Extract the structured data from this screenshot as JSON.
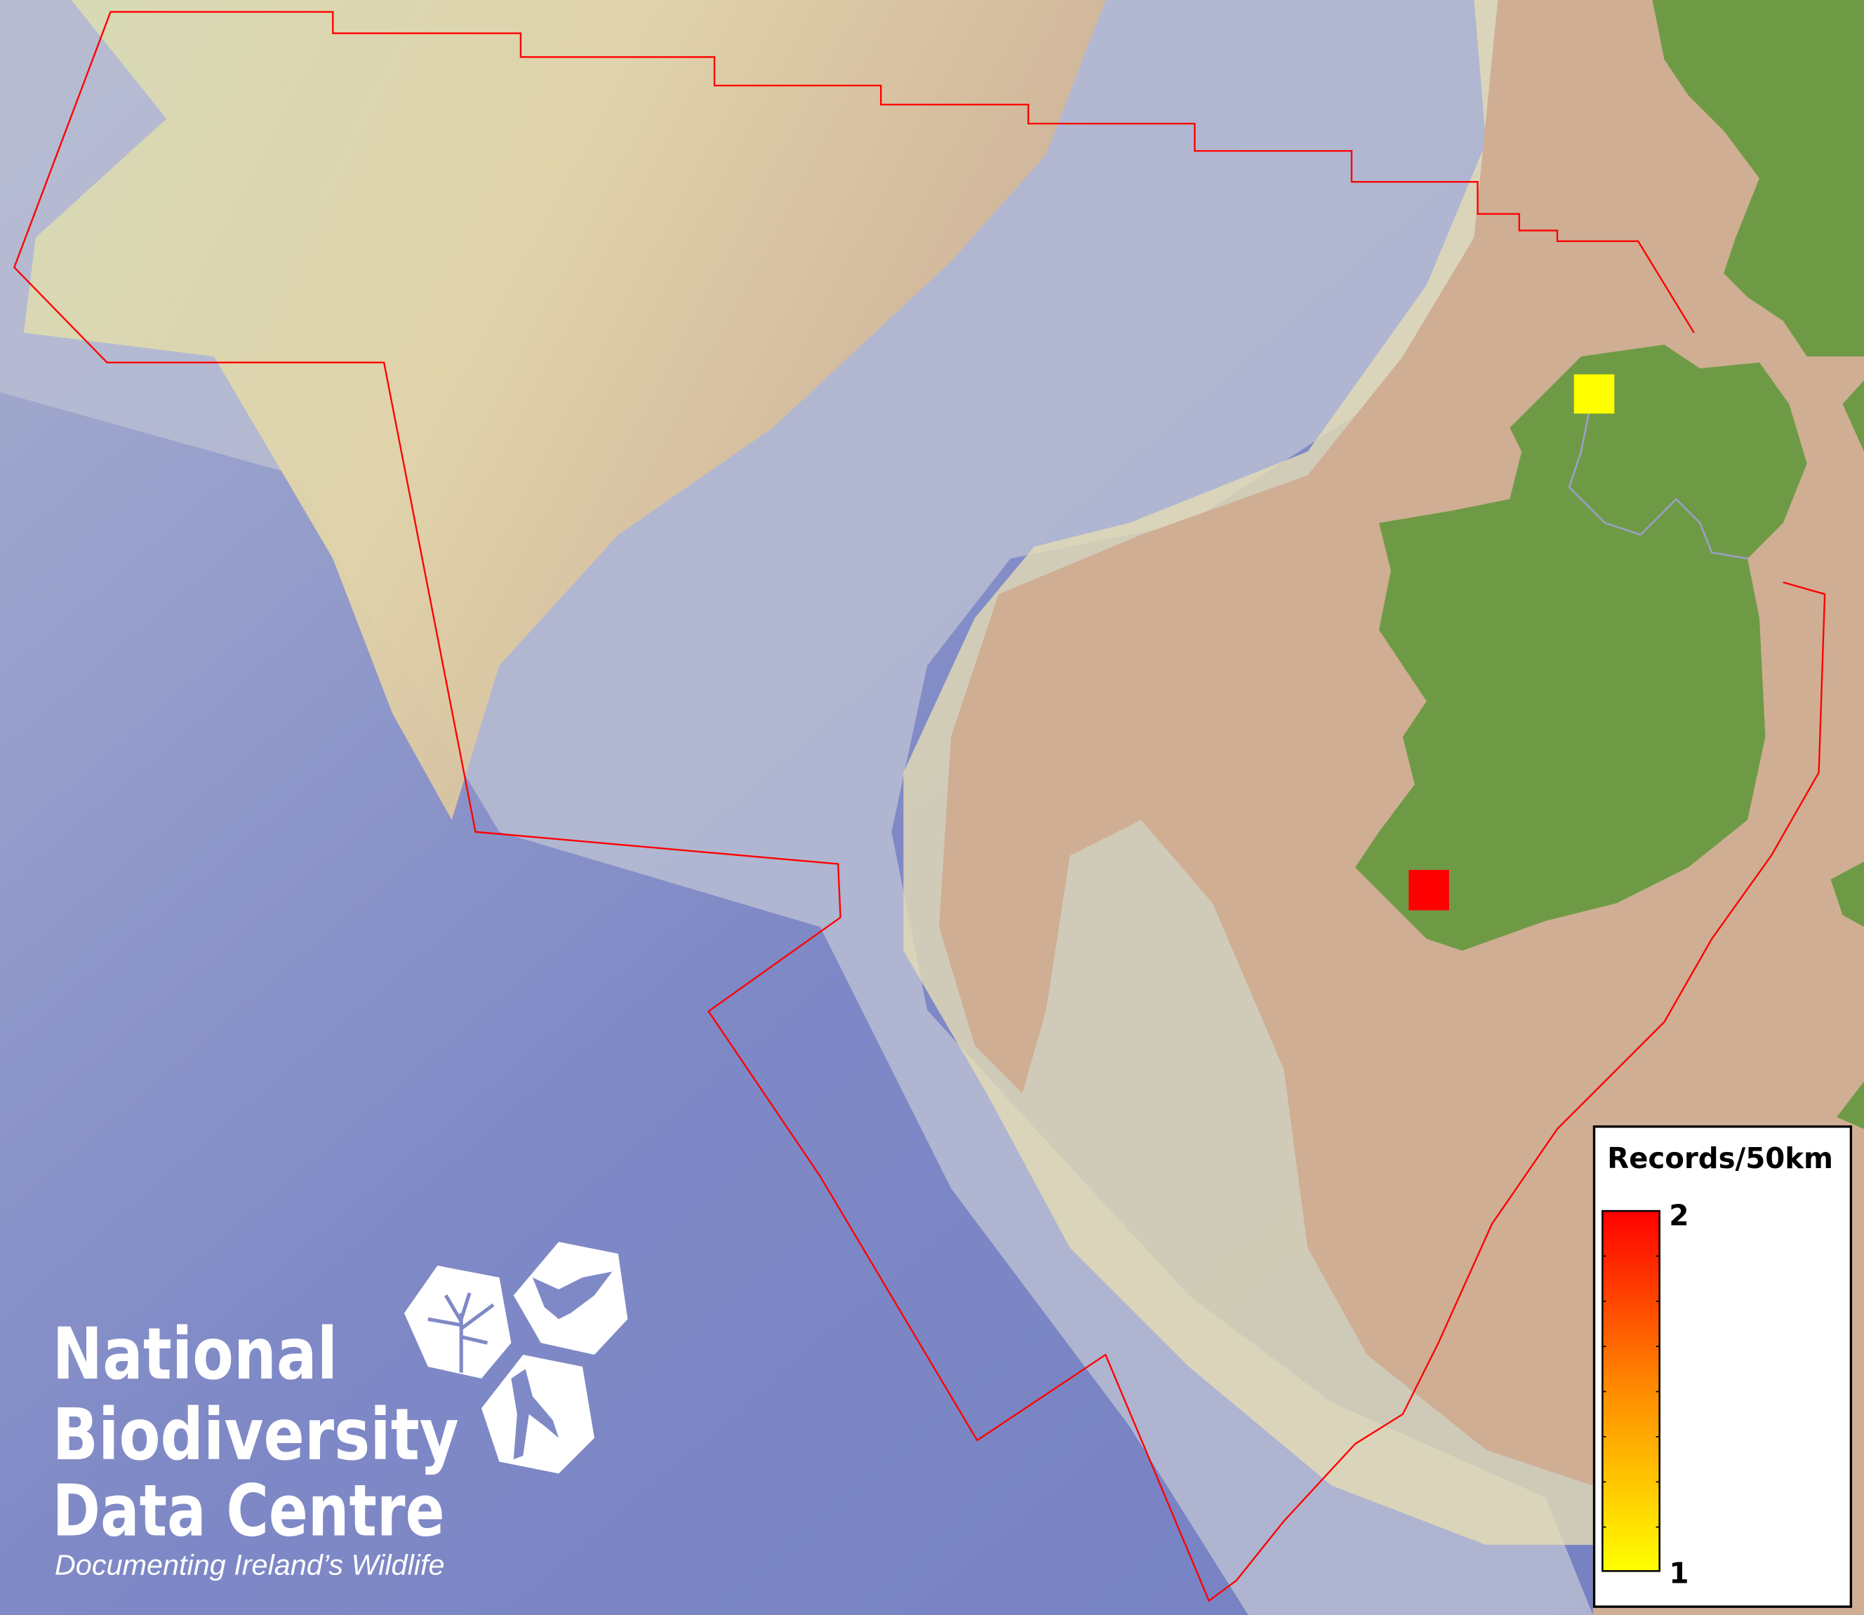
{
  "map": {
    "colors": {
      "deep_sea": "#7b86c4",
      "slope": "#b9bccf",
      "shelf": "#e4dcb0",
      "shelf_tan": "#cfae94",
      "land": "#6f9a45",
      "boundary": "#ff0000"
    },
    "records": [
      {
        "grid": "north-west Donegal",
        "value": 1,
        "color": "#ffff00"
      },
      {
        "grid": "south-west Kerry",
        "value": 2,
        "color": "#ff0000"
      }
    ]
  },
  "legend": {
    "title": "Records/50km",
    "max_label": "2",
    "min_label": "1",
    "min_color": "#ffff00",
    "max_color": "#ff0000"
  },
  "logo": {
    "line1": "National",
    "line2": "Biodiversity",
    "line3": "Data Centre",
    "tagline": "Documenting Ireland’s Wildlife",
    "icons": [
      "tree-icon",
      "butterfly-icon",
      "seahorse-icon"
    ]
  }
}
